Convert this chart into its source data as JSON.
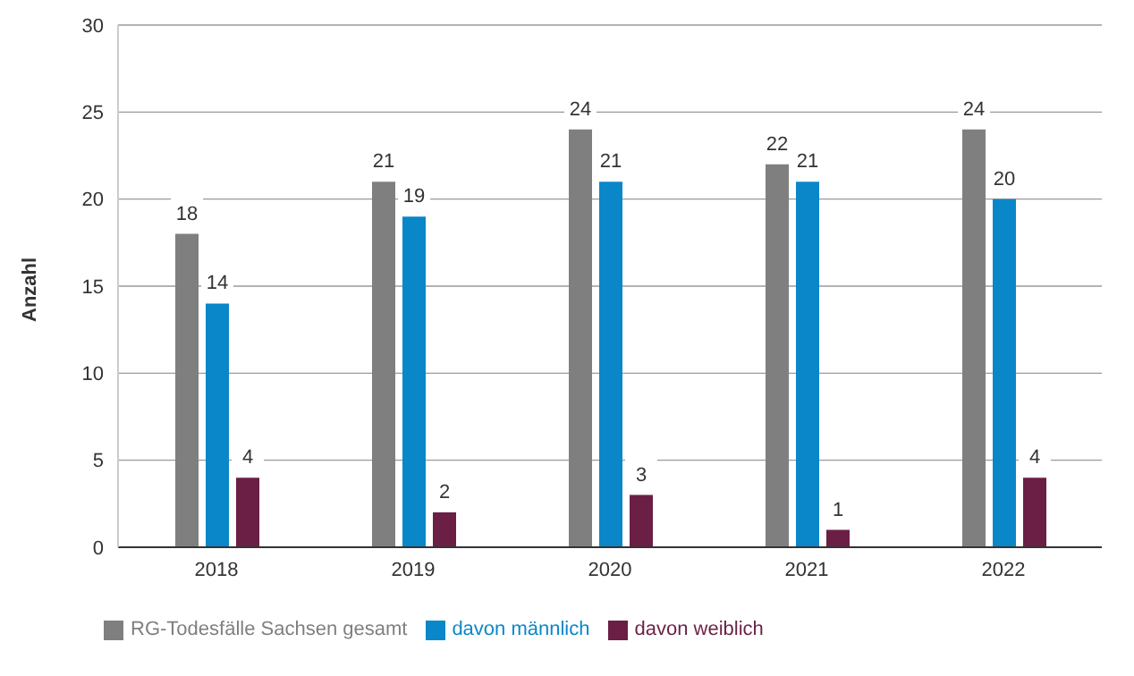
{
  "chart_data": {
    "type": "bar",
    "ylabel": "Anzahl",
    "categories": [
      "2018",
      "2019",
      "2020",
      "2021",
      "2022"
    ],
    "series": [
      {
        "name": "RG-Todesfälle Sachsen gesamt",
        "color": "#7f7f7f",
        "values": [
          18,
          21,
          24,
          22,
          24
        ]
      },
      {
        "name": "davon männlich",
        "color": "#0a87c8",
        "values": [
          14,
          19,
          21,
          21,
          20
        ]
      },
      {
        "name": "davon weiblich",
        "color": "#6b1f45",
        "values": [
          4,
          2,
          3,
          1,
          4
        ]
      }
    ],
    "ylim": [
      0,
      30
    ],
    "yticks": [
      0,
      5,
      10,
      15,
      20,
      25,
      30
    ],
    "grid": "y",
    "data_labels": true,
    "legend": "bottom left"
  }
}
